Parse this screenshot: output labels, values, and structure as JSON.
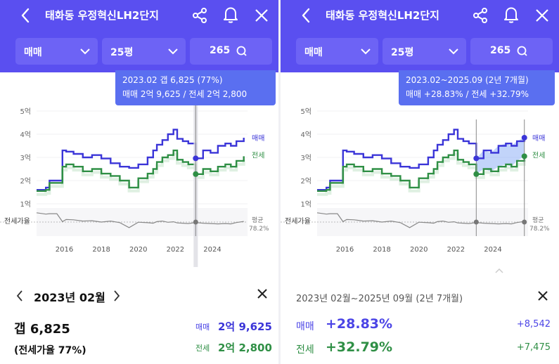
{
  "header": {
    "title": "태화동 우정혁신LH2단지",
    "color": "#5a4ff0"
  },
  "filters": {
    "trade_type": "매매",
    "size": "25평",
    "count": "265"
  },
  "left": {
    "tooltip_line1": "2023.02   갭 6,825 (77%)",
    "tooltip_line2": "매매 2억 9,625 / 전세 2억 2,800",
    "period_title": "2023년 02월",
    "gap": "갭 6,825",
    "jeonse_rate": "(전세가율 77%)",
    "trade_label": "매매",
    "trade_value": "2억 9,625",
    "jeonse_label": "전세",
    "jeonse_value": "2억 2,800"
  },
  "right": {
    "tooltip_line1": "2023.02~2025.09 (2년 7개월)",
    "tooltip_line2": "매매 +28.83%  /  전세 +32.79%",
    "range_title": "2023년 02월~2025년 09월 (2년 7개월)",
    "trade_label": "매매",
    "trade_pct": "+28.83%",
    "trade_diff": "+8,542",
    "jeonse_label": "전세",
    "jeonse_pct": "+32.79%",
    "jeonse_diff": "+7,475"
  },
  "chart_data": [
    {
      "type": "line",
      "y_tick_labels": [
        "5억",
        "4억",
        "3억",
        "2억",
        "1억"
      ],
      "x_tick_labels": [
        "2016",
        "2018",
        "2020",
        "2022",
        "2024"
      ],
      "ylim": [
        1,
        5
      ],
      "xlim": [
        2014.5,
        2025.9
      ],
      "legend_trade": "매매",
      "legend_jeonse": "전세",
      "rate_label": "전세가율",
      "avg_label": "평균",
      "avg_rate": "78.2%",
      "trade_color": "#3b35d8",
      "jeonse_color": "#2f8f45",
      "cursor_x": 2023.1,
      "series": [
        {
          "name": "매매",
          "x": [
            2014.5,
            2015.0,
            2015.2,
            2015.6,
            2015.9,
            2016.1,
            2016.5,
            2017.0,
            2017.5,
            2018.0,
            2018.5,
            2019.0,
            2019.5,
            2020.0,
            2020.5,
            2020.8,
            2021.0,
            2021.3,
            2021.6,
            2021.9,
            2022.1,
            2022.4,
            2022.7,
            2023.1,
            2023.5,
            2023.9,
            2024.3,
            2024.7,
            2025.0,
            2025.3,
            2025.7
          ],
          "values": [
            1.6,
            1.7,
            2.0,
            2.0,
            3.3,
            3.25,
            3.15,
            3.0,
            3.1,
            2.95,
            2.75,
            2.6,
            2.55,
            2.7,
            3.0,
            3.3,
            3.55,
            3.75,
            4.0,
            4.2,
            3.8,
            3.7,
            3.6,
            2.96,
            3.3,
            3.2,
            3.5,
            3.6,
            3.5,
            3.7,
            3.85
          ]
        },
        {
          "name": "전세",
          "x": [
            2014.5,
            2015.0,
            2015.2,
            2015.6,
            2015.9,
            2016.1,
            2016.5,
            2017.0,
            2017.5,
            2018.0,
            2018.5,
            2019.0,
            2019.5,
            2020.0,
            2020.5,
            2020.8,
            2021.0,
            2021.3,
            2021.6,
            2021.9,
            2022.1,
            2022.4,
            2022.7,
            2023.1,
            2023.5,
            2023.9,
            2024.3,
            2024.7,
            2025.0,
            2025.3,
            2025.7
          ],
          "values": [
            1.55,
            1.6,
            1.9,
            1.9,
            2.6,
            2.7,
            2.6,
            2.4,
            2.5,
            2.3,
            2.2,
            2.0,
            1.7,
            2.1,
            2.3,
            2.5,
            2.8,
            3.0,
            3.1,
            3.3,
            2.9,
            2.8,
            2.7,
            2.28,
            2.5,
            2.4,
            2.6,
            2.7,
            2.6,
            2.85,
            3.05
          ]
        }
      ]
    },
    {
      "type": "line",
      "y_tick_labels": [
        "5억",
        "4억",
        "3억",
        "2억",
        "1억"
      ],
      "x_tick_labels": [
        "2016",
        "2018",
        "2020",
        "2022",
        "2024"
      ],
      "ylim": [
        1,
        5
      ],
      "xlim": [
        2014.5,
        2025.9
      ],
      "legend_trade": "매매",
      "legend_jeonse": "전세",
      "rate_label": "전세가율",
      "avg_label": "평균",
      "avg_rate": "78.2%",
      "trade_color": "#3b35d8",
      "jeonse_color": "#2f8f45",
      "range_start": 2023.1,
      "range_end": 2025.7
    }
  ]
}
